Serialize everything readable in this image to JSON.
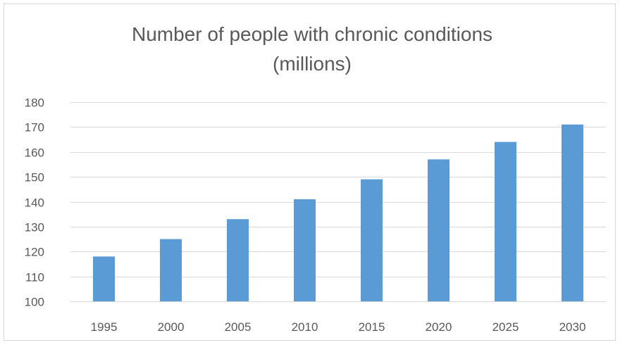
{
  "chart_data": {
    "type": "bar",
    "title_line1": "Number of people with chronic conditions",
    "title_line2": "(millions)",
    "categories": [
      "1995",
      "2000",
      "2005",
      "2010",
      "2015",
      "2020",
      "2025",
      "2030"
    ],
    "values": [
      118,
      125,
      133,
      141,
      149,
      157,
      164,
      171
    ],
    "ylim": [
      100,
      180
    ],
    "yticks": [
      100,
      110,
      120,
      130,
      140,
      150,
      160,
      170,
      180
    ],
    "grid": true,
    "legend": "none",
    "bar_color": "#5b9bd5",
    "xlabel": "",
    "ylabel": ""
  }
}
